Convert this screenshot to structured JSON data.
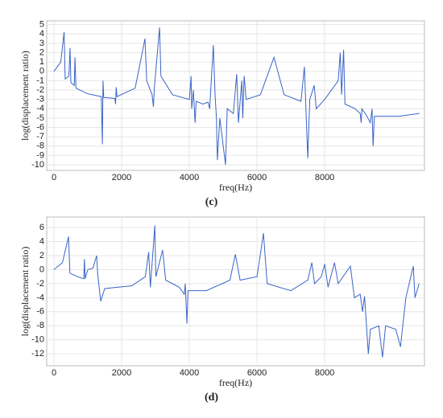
{
  "chart_data": [
    {
      "type": "line",
      "xlabel": "freq(Hz)",
      "ylabel": "log(displacement  ratio)",
      "caption": "(c)",
      "x": [
        0,
        200,
        300,
        330,
        440,
        476,
        500,
        600,
        620,
        650,
        1000,
        1400,
        1430,
        1450,
        1470,
        1800,
        1820,
        1840,
        1860,
        2400,
        2690,
        2740,
        2900,
        2940,
        2960,
        3120,
        3160,
        3500,
        4000,
        4050,
        4070,
        4120,
        4170,
        4200,
        4400,
        4550,
        4600,
        4710,
        4760,
        4800,
        4830,
        4900,
        5070,
        5120,
        5300,
        5400,
        5450,
        5550,
        5580,
        5620,
        5680,
        6100,
        6500,
        6800,
        7300,
        7400,
        7500,
        7560,
        7690,
        7750,
        8000,
        8400,
        8460,
        8500,
        8560,
        8600,
        8900,
        9050,
        9080,
        9100,
        9250,
        9350,
        9400,
        9430,
        9470,
        10200,
        10800
      ],
      "series": [
        {
          "name": "log(displacement  ratio)",
          "color": "#3a64c8",
          "values": [
            0,
            1,
            4.2,
            -0.8,
            -0.5,
            2.5,
            -1.2,
            -1.5,
            1.5,
            -1.8,
            -2.4,
            -2.7,
            -7.8,
            -1.0,
            -2.8,
            -2.9,
            -3.5,
            -1.7,
            -2.7,
            -1.8,
            3.5,
            -1.0,
            -2.5,
            -3.8,
            -2.0,
            4.7,
            -0.5,
            -2.5,
            -3.0,
            -0.5,
            -4.0,
            -2.0,
            -5.5,
            -3.2,
            -3.5,
            -3.3,
            -4.0,
            2.8,
            -2.5,
            -5.0,
            -9.5,
            -5.0,
            -10.0,
            -4.0,
            -4.5,
            -0.3,
            -5.5,
            -1.0,
            -5.0,
            -0.5,
            -3.0,
            -2.5,
            1.5,
            -2.5,
            -3.2,
            0.5,
            -9.3,
            -3.0,
            -1.5,
            -4.0,
            -3.0,
            -1.0,
            2.0,
            -2.5,
            2.3,
            -3.5,
            -4.0,
            -4.5,
            -5.5,
            -4.0,
            -4.8,
            -5.5,
            -4.0,
            -8.0,
            -4.8,
            -4.8,
            -4.5
          ]
        }
      ],
      "xlim": [
        -215,
        10950
      ],
      "xticks": [
        0,
        2000,
        4000,
        6000,
        8000
      ],
      "ylim": [
        -10.6,
        5.4
      ],
      "yticks": [
        5,
        4,
        3,
        2,
        1,
        0,
        -1,
        -2,
        -3,
        -4,
        -5,
        -6,
        -7,
        -8,
        -9,
        -10
      ],
      "grid": true
    },
    {
      "type": "line",
      "xlabel": "freq(Hz)",
      "ylabel": "log(displacement  ratio)",
      "caption": "(d)",
      "x": [
        0,
        250,
        430,
        470,
        700,
        880,
        900,
        920,
        1000,
        1150,
        1260,
        1290,
        1380,
        1500,
        2300,
        2700,
        2800,
        2850,
        2980,
        3010,
        3210,
        3300,
        3700,
        3850,
        3880,
        3930,
        3960,
        4500,
        5200,
        5360,
        5500,
        6000,
        6190,
        6300,
        7000,
        7500,
        7620,
        7700,
        7900,
        8000,
        8100,
        8290,
        8400,
        8760,
        8880,
        9050,
        9120,
        9180,
        9290,
        9350,
        9600,
        9710,
        9800,
        10100,
        10240,
        10400,
        10620,
        10670,
        10790
      ],
      "series": [
        {
          "name": "log(displacement  ratio)",
          "color": "#3a64c8",
          "values": [
            0,
            1,
            4.7,
            -0.5,
            -1.0,
            -1.3,
            1.5,
            -1.3,
            0.0,
            0.2,
            2.0,
            -0.5,
            -4.5,
            -2.7,
            -2.3,
            -1.0,
            2.5,
            -2.5,
            6.3,
            -1.0,
            2.8,
            -1.5,
            -2.5,
            -3.5,
            -2.0,
            -7.7,
            -3.0,
            -3.0,
            -1.5,
            2.2,
            -1.5,
            -1.0,
            5.2,
            -2.0,
            -3.0,
            -1.5,
            1.0,
            -2.0,
            -1.0,
            0.8,
            -2.5,
            1.0,
            -2.0,
            0.5,
            -4.0,
            -3.5,
            -6.0,
            -3.8,
            -12.0,
            -8.5,
            -8.0,
            -12.5,
            -8.0,
            -8.5,
            -11.0,
            -4.0,
            0.5,
            -4.0,
            -2.0
          ]
        }
      ],
      "xlim": [
        -215,
        10950
      ],
      "xticks": [
        0,
        2000,
        4000,
        6000,
        8000
      ],
      "ylim": [
        -13.7,
        7.5
      ],
      "yticks": [
        6,
        4,
        2,
        0,
        -2,
        -4,
        -6,
        -8,
        -10,
        -12
      ],
      "grid": true
    }
  ]
}
